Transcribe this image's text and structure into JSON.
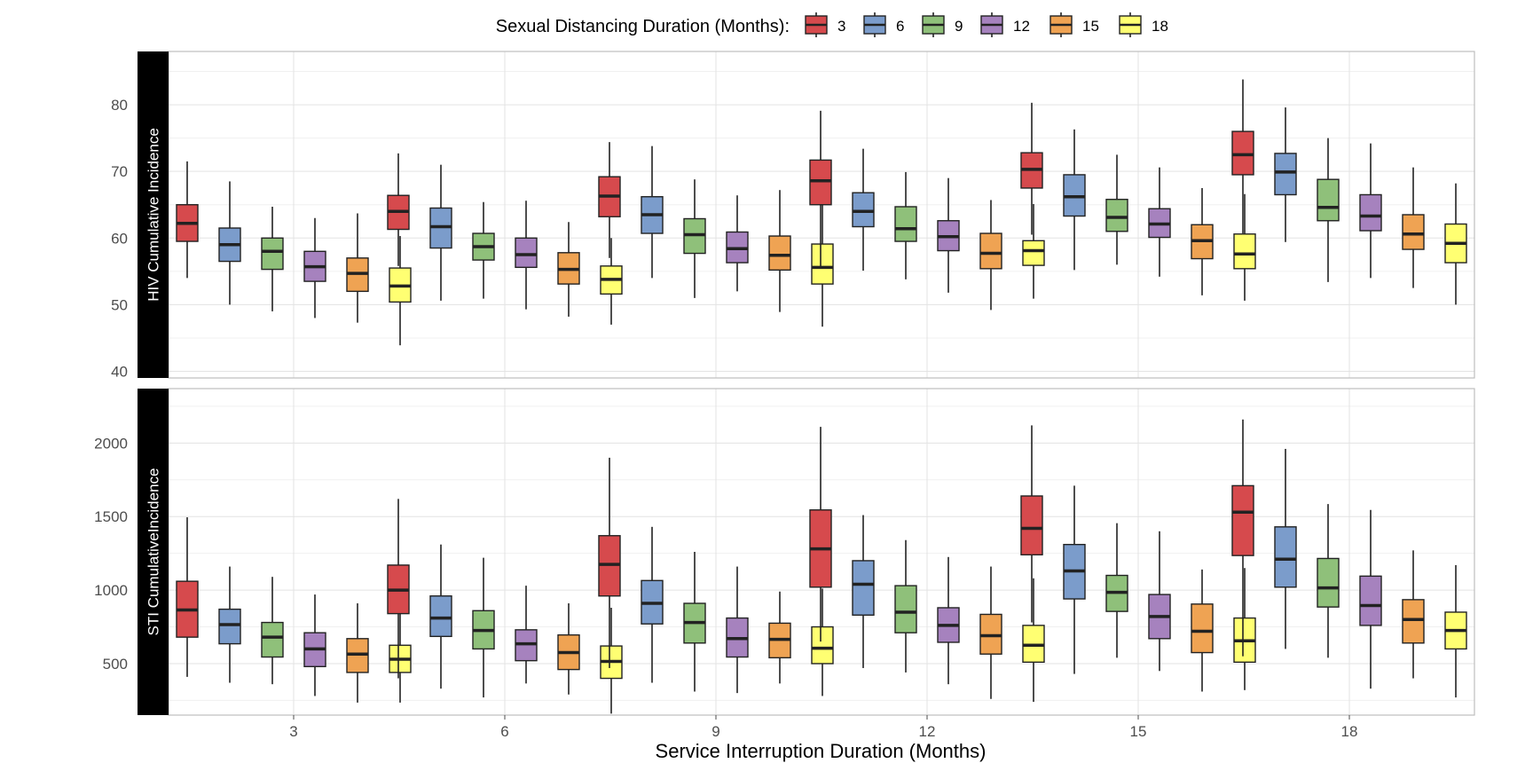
{
  "chart_data": {
    "type": "box",
    "legend": {
      "title": "Sexual Distancing Duration (Months):",
      "position": "top",
      "items": [
        "3",
        "6",
        "9",
        "12",
        "15",
        "18"
      ]
    },
    "xlabel": "Service Interruption Duration (Months)",
    "categories": [
      "3",
      "6",
      "9",
      "12",
      "15",
      "18"
    ],
    "colors": [
      "#D64A4D",
      "#7B9CCB",
      "#8FC07A",
      "#A682BE",
      "#EFA353",
      "#FFFF72"
    ],
    "grid": true,
    "panels": [
      {
        "strip_label": "HIV Cumulative Incidence",
        "ylim": [
          39,
          88
        ],
        "yticks": [
          40,
          50,
          60,
          70,
          80
        ],
        "boxes": [
          [
            [
              54,
              59.5,
              62.2,
              65,
              71.5
            ],
            [
              50,
              56.5,
              59,
              61.5,
              68.5
            ],
            [
              49,
              55.3,
              58,
              60,
              64.7
            ],
            [
              48,
              53.5,
              55.7,
              58,
              63
            ],
            [
              47.3,
              52,
              54.7,
              57,
              63.7
            ],
            [
              43.9,
              50.4,
              52.8,
              55.5,
              60.3
            ]
          ],
          [
            [
              55.8,
              61.3,
              64,
              66.4,
              72.7
            ],
            [
              50.6,
              58.5,
              61.7,
              64.5,
              71
            ],
            [
              50.9,
              56.7,
              58.7,
              60.7,
              65.4
            ],
            [
              49.3,
              55.6,
              57.5,
              60,
              65.6
            ],
            [
              48.2,
              53.1,
              55.3,
              57.8,
              62.4
            ],
            [
              47,
              51.6,
              53.8,
              55.8,
              60
            ]
          ],
          [
            [
              57,
              63.2,
              66.3,
              69.2,
              74.4
            ],
            [
              54,
              60.7,
              63.5,
              66.2,
              73.8
            ],
            [
              51,
              57.7,
              60.5,
              62.9,
              68.8
            ],
            [
              52,
              56.3,
              58.4,
              60.9,
              66.4
            ],
            [
              48.9,
              55.2,
              57.4,
              60.3,
              67.2
            ],
            [
              46.7,
              53.1,
              55.6,
              59.1,
              65.4
            ]
          ],
          [
            [
              55.7,
              65,
              68.6,
              71.7,
              79.1
            ],
            [
              55.1,
              61.7,
              64,
              66.8,
              73.4
            ],
            [
              53.8,
              59.5,
              61.4,
              64.7,
              69.9
            ],
            [
              51.8,
              58.1,
              60.2,
              62.6,
              69
            ],
            [
              49.2,
              55.4,
              57.7,
              60.7,
              65.7
            ],
            [
              50.9,
              55.9,
              58.1,
              59.6,
              65.1
            ]
          ],
          [
            [
              60.5,
              67.5,
              70.3,
              72.8,
              80.3
            ],
            [
              55.2,
              63.3,
              66.2,
              69.5,
              76.3
            ],
            [
              56,
              61,
              63.1,
              65.8,
              72.5
            ],
            [
              54.2,
              60.1,
              62.1,
              64.4,
              70.6
            ],
            [
              51.4,
              56.9,
              59.6,
              62,
              67.5
            ],
            [
              50.6,
              55.4,
              57.6,
              60.6,
              66.6
            ]
          ],
          [
            [
              60.7,
              69.5,
              72.5,
              76,
              83.8
            ],
            [
              59.4,
              66.5,
              69.9,
              72.7,
              79.6
            ],
            [
              53.4,
              62.6,
              64.6,
              68.8,
              75
            ],
            [
              54,
              61.1,
              63.3,
              66.5,
              74.2
            ],
            [
              52.5,
              58.3,
              60.6,
              63.5,
              70.6
            ],
            [
              50,
              56.3,
              59.2,
              62.1,
              68.2
            ]
          ]
        ]
      },
      {
        "strip_label": "STI CumulativeIncidence",
        "ylim": [
          150,
          2370
        ],
        "yticks": [
          500,
          1000,
          1500,
          2000
        ],
        "boxes": [
          [
            [
              410,
              680,
              865,
              1060,
              1495
            ],
            [
              370,
              635,
              765,
              870,
              1160
            ],
            [
              360,
              545,
              680,
              780,
              1090
            ],
            [
              280,
              480,
              600,
              710,
              970
            ],
            [
              235,
              440,
              565,
              670,
              910
            ],
            [
              235,
              440,
              530,
              625,
              880
            ]
          ],
          [
            [
              400,
              840,
              1000,
              1170,
              1620
            ],
            [
              330,
              685,
              810,
              960,
              1310
            ],
            [
              270,
              600,
              725,
              860,
              1220
            ],
            [
              365,
              520,
              635,
              730,
              1030
            ],
            [
              290,
              460,
              575,
              695,
              910
            ],
            [
              160,
              400,
              515,
              620,
              880
            ]
          ],
          [
            [
              470,
              960,
              1175,
              1370,
              1900
            ],
            [
              370,
              770,
              910,
              1065,
              1430
            ],
            [
              310,
              640,
              780,
              910,
              1260
            ],
            [
              300,
              545,
              670,
              810,
              1160
            ],
            [
              365,
              540,
              665,
              775,
              990
            ],
            [
              280,
              500,
              605,
              750,
              1010
            ]
          ],
          [
            [
              650,
              1020,
              1280,
              1545,
              2110
            ],
            [
              470,
              830,
              1040,
              1200,
              1510
            ],
            [
              440,
              710,
              850,
              1030,
              1340
            ],
            [
              360,
              645,
              760,
              880,
              1225
            ],
            [
              260,
              565,
              690,
              835,
              1160
            ],
            [
              240,
              510,
              625,
              760,
              1080
            ]
          ],
          [
            [
              780,
              1240,
              1420,
              1640,
              2120
            ],
            [
              430,
              940,
              1130,
              1310,
              1710
            ],
            [
              540,
              855,
              985,
              1100,
              1455
            ],
            [
              450,
              670,
              820,
              970,
              1400
            ],
            [
              310,
              575,
              720,
              905,
              1140
            ],
            [
              320,
              510,
              655,
              810,
              1150
            ]
          ],
          [
            [
              550,
              1235,
              1530,
              1710,
              2160
            ],
            [
              600,
              1020,
              1210,
              1430,
              1960
            ],
            [
              540,
              885,
              1015,
              1215,
              1585
            ],
            [
              330,
              760,
              895,
              1095,
              1545
            ],
            [
              400,
              640,
              800,
              935,
              1270
            ],
            [
              270,
              600,
              725,
              850,
              1170
            ]
          ]
        ]
      }
    ]
  }
}
